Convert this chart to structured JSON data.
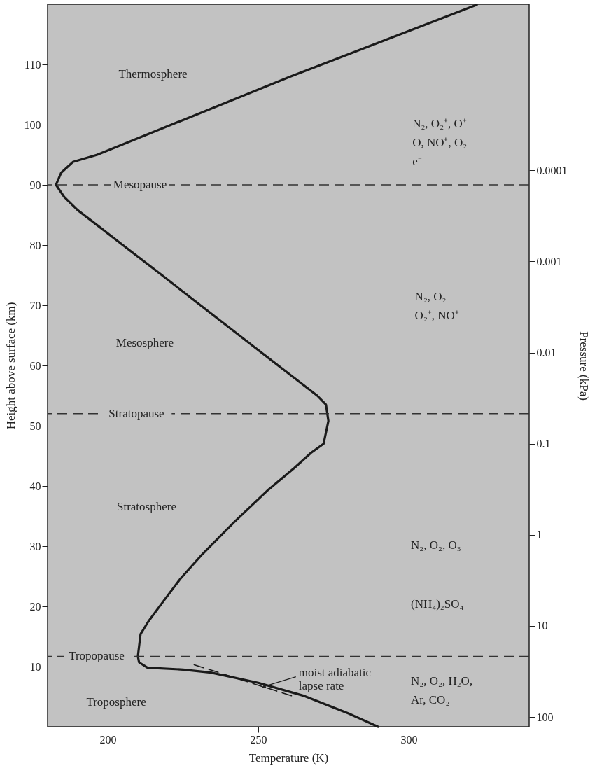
{
  "chart_data": {
    "type": "line",
    "xlabel": "Temperature (K)",
    "ylabel": "Height above surface (km)",
    "y2label": "Pressure (kPa)",
    "xlim": [
      180,
      340
    ],
    "xticks": [
      200,
      250,
      300
    ],
    "ylim": [
      0,
      120
    ],
    "yticks": [
      10,
      20,
      30,
      40,
      50,
      60,
      70,
      80,
      90,
      100,
      110
    ],
    "log": "y2",
    "y2lim": [
      128,
      1.5e-06
    ],
    "y2ticks": [
      100,
      10,
      1,
      0.1,
      0.01,
      0.001,
      0.0001
    ],
    "grid": false,
    "series": [
      {
        "type": "line",
        "color": "#1a1a1a",
        "line_style": "solid",
        "x": [
          289.8,
          280,
          265.4,
          250,
          234.3,
          225,
          213.2,
          210.4,
          210,
          210.9,
          213.5,
          218.1,
          224,
          231.3,
          242,
          253.4,
          262,
          267.5,
          271.7,
          273.3,
          272.5,
          269.6,
          256.6,
          243.7,
          230.8,
          218,
          205,
          196.5,
          190,
          185.5,
          182.8,
          184.5,
          188.4,
          196.5,
          260.7,
          322.6
        ],
        "values": [
          0,
          2.2,
          5.1,
          7.3,
          9.0,
          9.5,
          9.8,
          10.7,
          11.7,
          15.4,
          17.5,
          20.6,
          24.5,
          28.6,
          34,
          39.4,
          43,
          45.5,
          47,
          50.8,
          53.5,
          55,
          60,
          65,
          70,
          75,
          80,
          83.3,
          85.8,
          88,
          90,
          92,
          93.8,
          95,
          108,
          119.9
        ]
      },
      {
        "type": "line",
        "color": "#1a1a1a",
        "line_style": "dashed",
        "x": [
          228.7,
          261.3
        ],
        "values": [
          10.3,
          5.1
        ]
      }
    ],
    "ref_lines": [
      {
        "axis": "y",
        "value": 90,
        "label": "Mesopause",
        "line_style": "dashed",
        "color": "#333333"
      },
      {
        "axis": "y",
        "value": 52,
        "label": "Stratopause",
        "line_style": "dashed",
        "color": "#333333"
      },
      {
        "axis": "y",
        "value": 11.7,
        "label": "Tropopause",
        "line_style": "dashed",
        "color": "#333333"
      }
    ],
    "annotations": [
      "Thermosphere",
      "Mesosphere",
      "Stratosphere",
      "Troposphere",
      "N₂, O₂⁺, O⁺\nO, NO⁺, O₂\ne⁻",
      "N₂, O₂\nO₂⁺, NO⁺",
      "N₂, O₂, O₃",
      "(NH₄)₂SO₄",
      "N₂, O₂, H₂O,\nAr, CO₂",
      {
        "text": "moist adiabatic\nlapse rate",
        "x": 252,
        "y": 6.7
      }
    ]
  }
}
